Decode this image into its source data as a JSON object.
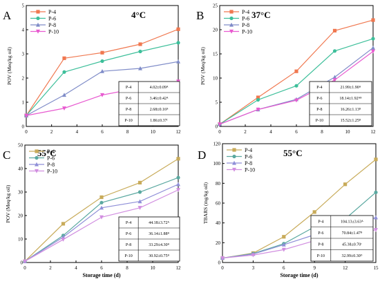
{
  "colors": {
    "P-4": "#f07850",
    "P-6": "#3dbf9a",
    "P-8": "#7f8cc8",
    "P-10": "#e85ad0",
    "P-4-55": "#c8ab5a",
    "P-6-55": "#5aa8a0",
    "P-8-55": "#8f8fd8",
    "P-10-55": "#d18ee0"
  },
  "chart_data": [
    {
      "type": "line",
      "panel_letter": "A",
      "title": "4°C",
      "xlabel": "",
      "ylabel": "POV (Meq/kg oil)",
      "xlim": [
        0,
        12
      ],
      "ylim": [
        0,
        5
      ],
      "xticks": [
        "0",
        "2",
        "4",
        "6",
        "8",
        "10",
        "12"
      ],
      "yticks": [
        "0",
        "1",
        "2",
        "3",
        "4",
        "5"
      ],
      "x": [
        0,
        3,
        6,
        9,
        12
      ],
      "legend_position": "top-left",
      "series": [
        {
          "name": "P-4",
          "values": [
            0.45,
            2.82,
            3.05,
            3.4,
            4.02
          ]
        },
        {
          "name": "P-6",
          "values": [
            0.45,
            2.25,
            2.7,
            3.1,
            3.46
          ]
        },
        {
          "name": "P-8",
          "values": [
            0.45,
            1.3,
            2.28,
            2.4,
            2.68
          ]
        },
        {
          "name": "P-10",
          "values": [
            0.45,
            0.75,
            1.3,
            1.6,
            1.86
          ]
        }
      ],
      "table": [
        [
          "P-4",
          "4.02±0.09ᴬ"
        ],
        [
          "P-6",
          "3.46±0.42ᴬ"
        ],
        [
          "P-8",
          "2.68±0.16ᴮ"
        ],
        [
          "P-10",
          "1.86±0.37ᶜ"
        ]
      ]
    },
    {
      "type": "line",
      "panel_letter": "B",
      "title": "37°C",
      "xlabel": "",
      "ylabel": "POV (Meq/kg oil)",
      "xlim": [
        0,
        12
      ],
      "ylim": [
        0,
        25
      ],
      "xticks": [
        "0",
        "2",
        "4",
        "6",
        "8",
        "10",
        "12"
      ],
      "yticks": [
        "0",
        "5",
        "10",
        "15",
        "20",
        "25"
      ],
      "x": [
        0,
        3,
        6,
        9,
        12
      ],
      "legend_position": "top-left",
      "series": [
        {
          "name": "P-4",
          "values": [
            0.45,
            6.0,
            11.4,
            19.8,
            21.99
          ]
        },
        {
          "name": "P-6",
          "values": [
            0.45,
            5.5,
            8.4,
            15.6,
            18.14
          ]
        },
        {
          "name": "P-8",
          "values": [
            0.45,
            3.5,
            5.6,
            10.2,
            16.26
          ]
        },
        {
          "name": "P-10",
          "values": [
            0.45,
            3.5,
            5.4,
            9.6,
            15.52
          ]
        }
      ],
      "table": [
        [
          "P-4",
          "21.99±1.90ᴬ"
        ],
        [
          "P-6",
          "18.14±1.92ᴬᴮ"
        ],
        [
          "P-8",
          "16.26±1.13ᴮ"
        ],
        [
          "P-10",
          "15.52±1.25ᴮ"
        ]
      ]
    },
    {
      "type": "line",
      "panel_letter": "C",
      "title": "55°C",
      "xlabel": "Storage time (d)",
      "ylabel": "POV (Meq/kg oil)",
      "xlim": [
        0,
        12
      ],
      "ylim": [
        0,
        50
      ],
      "xticks": [
        "0",
        "2",
        "4",
        "6",
        "8",
        "10",
        "12"
      ],
      "yticks": [
        "0",
        "10",
        "20",
        "30",
        "40",
        "50"
      ],
      "x": [
        0,
        3,
        6,
        9,
        12
      ],
      "legend_position": "top-left",
      "series": [
        {
          "name": "P-4",
          "values": [
            0.5,
            16.5,
            27.8,
            34.0,
            44.18
          ]
        },
        {
          "name": "P-6",
          "values": [
            0.5,
            11.5,
            25.5,
            30.0,
            36.14
          ]
        },
        {
          "name": "P-8",
          "values": [
            0.5,
            10.8,
            23.3,
            26.0,
            33.29
          ]
        },
        {
          "name": "P-10",
          "values": [
            0.5,
            9.8,
            19.3,
            23.3,
            30.92
          ]
        }
      ],
      "table": [
        [
          "P-4",
          "44.18±3.72ᴬ"
        ],
        [
          "P-6",
          "36.14±1.88ᴮ"
        ],
        [
          "P-8",
          "33.29±4.30ᴮ"
        ],
        [
          "P-10",
          "30.92±0.75ᴮ"
        ]
      ]
    },
    {
      "type": "line",
      "panel_letter": "D",
      "title": "55°C",
      "xlabel": "Storage time (d)",
      "ylabel": "TBARS (mg/kg oil)",
      "xlim": [
        0,
        15
      ],
      "ylim": [
        0,
        120
      ],
      "xticks": [
        "0",
        "3",
        "6",
        "9",
        "12",
        "15"
      ],
      "yticks": [
        "0",
        "20",
        "40",
        "60",
        "80",
        "100",
        "120"
      ],
      "x": [
        0,
        3,
        6,
        9,
        12,
        15
      ],
      "legend_position": "top-left",
      "series": [
        {
          "name": "P-4",
          "values": [
            4.5,
            9.5,
            26.0,
            51.0,
            79.0,
            104.13
          ]
        },
        {
          "name": "P-6",
          "values": [
            4.5,
            9.0,
            19.0,
            36.0,
            44.0,
            70.84
          ]
        },
        {
          "name": "P-8",
          "values": [
            4.5,
            8.5,
            18.0,
            28.0,
            37.0,
            45.38
          ]
        },
        {
          "name": "P-10",
          "values": [
            4.5,
            7.5,
            13.0,
            22.0,
            27.0,
            32.99
          ]
        }
      ],
      "table": [
        [
          "P-4",
          "104.13±3.63ᴬ"
        ],
        [
          "P-6",
          "70.84±1.47ᴮ"
        ],
        [
          "P-8",
          "45.38±0.70ᶜ"
        ],
        [
          "P-10",
          "32.99±0.30ᴰ"
        ]
      ]
    }
  ]
}
